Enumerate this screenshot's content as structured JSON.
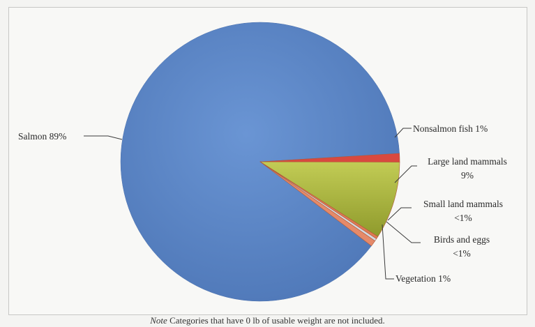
{
  "chart_data": {
    "type": "pie",
    "title": "",
    "slices": [
      {
        "label": "Salmon",
        "value_label": "89%",
        "value": 89,
        "color": "#5b86c7"
      },
      {
        "label": "Nonsalmon fish",
        "value_label": "1%",
        "value": 1,
        "color": "#d9493f"
      },
      {
        "label": "Large land mammals",
        "value_label": "9%",
        "value": 9,
        "color": "#a8b43c"
      },
      {
        "label": "Small land mammals",
        "value_label": "<1%",
        "value": 0.3,
        "color": "#e07a55"
      },
      {
        "label": "Birds and eggs",
        "value_label": "<1%",
        "value": 0.3,
        "color": "#d4d8e0"
      },
      {
        "label": "Vegetation",
        "value_label": "1%",
        "value": 0.7,
        "color": "#e58a6a"
      }
    ]
  },
  "note": {
    "prefix": "Note",
    "text": " Categories that have 0 lb of usable weight are not included."
  }
}
